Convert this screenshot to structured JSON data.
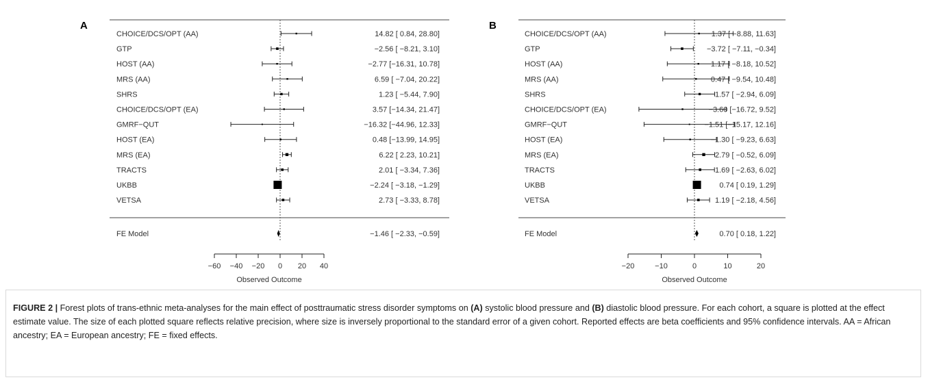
{
  "chart_data": [
    {
      "type": "forest",
      "panel_label": "A",
      "xlabel": "Observed Outcome",
      "xlim": [
        -60,
        40
      ],
      "xticks": [
        -60,
        -40,
        -20,
        0,
        20,
        40
      ],
      "reference_line": 0,
      "studies": [
        {
          "name": "CHOICE/DCS/OPT (AA)",
          "estimate": 14.82,
          "lower": 0.84,
          "upper": 28.8,
          "ci_text": "14.82 [ 0.84, 28.80]",
          "weight": 1
        },
        {
          "name": "GTP",
          "estimate": -2.56,
          "lower": -8.21,
          "upper": 3.1,
          "ci_text": "−2.56 [ −8.21, 3.10]",
          "weight": 1.5
        },
        {
          "name": "HOST (AA)",
          "estimate": -2.77,
          "lower": -16.31,
          "upper": 10.78,
          "ci_text": "−2.77 [−16.31, 10.78]",
          "weight": 1
        },
        {
          "name": "MRS (AA)",
          "estimate": 6.59,
          "lower": -7.04,
          "upper": 20.22,
          "ci_text": "6.59 [ −7.04, 20.22]",
          "weight": 1
        },
        {
          "name": "SHRS",
          "estimate": 1.23,
          "lower": -5.44,
          "upper": 7.9,
          "ci_text": "1.23 [ −5.44, 7.90]",
          "weight": 1.4
        },
        {
          "name": "CHOICE/DCS/OPT (EA)",
          "estimate": 3.57,
          "lower": -14.34,
          "upper": 21.47,
          "ci_text": "3.57 [−14.34, 21.47]",
          "weight": 1
        },
        {
          "name": "GMRF−QUT",
          "estimate": -16.32,
          "lower": -44.96,
          "upper": 12.33,
          "ci_text": "−16.32 [−44.96, 12.33]",
          "weight": 0.8
        },
        {
          "name": "HOST (EA)",
          "estimate": 0.48,
          "lower": -13.99,
          "upper": 14.95,
          "ci_text": "0.48 [−13.99, 14.95]",
          "weight": 1
        },
        {
          "name": "MRS (EA)",
          "estimate": 6.22,
          "lower": 2.23,
          "upper": 10.21,
          "ci_text": "6.22 [ 2.23, 10.21]",
          "weight": 1.8
        },
        {
          "name": "TRACTS",
          "estimate": 2.01,
          "lower": -3.34,
          "upper": 7.36,
          "ci_text": "2.01 [ −3.34, 7.36]",
          "weight": 1.5
        },
        {
          "name": "UKBB",
          "estimate": -2.24,
          "lower": -3.18,
          "upper": -1.29,
          "ci_text": "−2.24 [ −3.18, −1.29]",
          "weight": 5
        },
        {
          "name": "VETSA",
          "estimate": 2.73,
          "lower": -3.33,
          "upper": 8.78,
          "ci_text": "2.73 [ −3.33, 8.78]",
          "weight": 1.5
        }
      ],
      "summary": {
        "name": "FE Model",
        "estimate": -1.46,
        "lower": -2.33,
        "upper": -0.59,
        "ci_text": "−1.46 [ −2.33, −0.59]"
      }
    },
    {
      "type": "forest",
      "panel_label": "B",
      "xlabel": "Observed Outcome",
      "xlim": [
        -20,
        20
      ],
      "xticks": [
        -20,
        -10,
        0,
        10,
        20
      ],
      "reference_line": 0,
      "studies": [
        {
          "name": "CHOICE/DCS/OPT (AA)",
          "estimate": 1.37,
          "lower": -8.88,
          "upper": 11.63,
          "ci_text": "1.37 [ −8.88, 11.63]",
          "weight": 1
        },
        {
          "name": "GTP",
          "estimate": -3.72,
          "lower": -7.11,
          "upper": -0.34,
          "ci_text": "−3.72 [ −7.11, −0.34]",
          "weight": 1.5
        },
        {
          "name": "HOST (AA)",
          "estimate": 1.17,
          "lower": -8.18,
          "upper": 10.52,
          "ci_text": "1.17 [ −8.18, 10.52]",
          "weight": 1
        },
        {
          "name": "MRS (AA)",
          "estimate": 0.47,
          "lower": -9.54,
          "upper": 10.48,
          "ci_text": "0.47 [ −9.54, 10.48]",
          "weight": 1
        },
        {
          "name": "SHRS",
          "estimate": 1.57,
          "lower": -2.94,
          "upper": 6.09,
          "ci_text": "1.57 [ −2.94, 6.09]",
          "weight": 1.4
        },
        {
          "name": "CHOICE/DCS/OPT (EA)",
          "estimate": -3.6,
          "lower": -16.72,
          "upper": 9.52,
          "ci_text": "−3.60 [−16.72, 9.52]",
          "weight": 1
        },
        {
          "name": "GMRF−QUT",
          "estimate": -1.51,
          "lower": -15.17,
          "upper": 12.16,
          "ci_text": "−1.51 [−15.17, 12.16]",
          "weight": 0.8
        },
        {
          "name": "HOST (EA)",
          "estimate": -1.3,
          "lower": -9.23,
          "upper": 6.63,
          "ci_text": "−1.30 [ −9.23, 6.63]",
          "weight": 1
        },
        {
          "name": "MRS (EA)",
          "estimate": 2.79,
          "lower": -0.52,
          "upper": 6.09,
          "ci_text": "2.79 [ −0.52, 6.09]",
          "weight": 1.8
        },
        {
          "name": "TRACTS",
          "estimate": 1.69,
          "lower": -2.63,
          "upper": 6.02,
          "ci_text": "1.69 [ −2.63, 6.02]",
          "weight": 1.5
        },
        {
          "name": "UKBB",
          "estimate": 0.74,
          "lower": 0.19,
          "upper": 1.29,
          "ci_text": "0.74 [ 0.19, 1.29]",
          "weight": 5
        },
        {
          "name": "VETSA",
          "estimate": 1.19,
          "lower": -2.18,
          "upper": 4.56,
          "ci_text": "1.19 [ −2.18, 4.56]",
          "weight": 1.5
        }
      ],
      "summary": {
        "name": "FE Model",
        "estimate": 0.7,
        "lower": 0.18,
        "upper": 1.22,
        "ci_text": "0.70 [ 0.18, 1.22]"
      }
    }
  ],
  "caption": {
    "figure_label": "FIGURE 2 |",
    "p1": " Forest plots of trans-ethnic meta-analyses for the main effect of posttraumatic stress disorder symptoms on ",
    "a_label": "(A)",
    "p2": " systolic blood pressure and ",
    "b_label": "(B)",
    "p3": " diastolic blood pressure. For each cohort, a square is plotted at the effect estimate value. The size of each plotted square reflects relative precision, where size is inversely proportional to the standard error of a given cohort. Reported effects are beta coefficients and 95% confidence intervals. AA = African ancestry; EA = European ancestry; FE = fixed effects."
  }
}
